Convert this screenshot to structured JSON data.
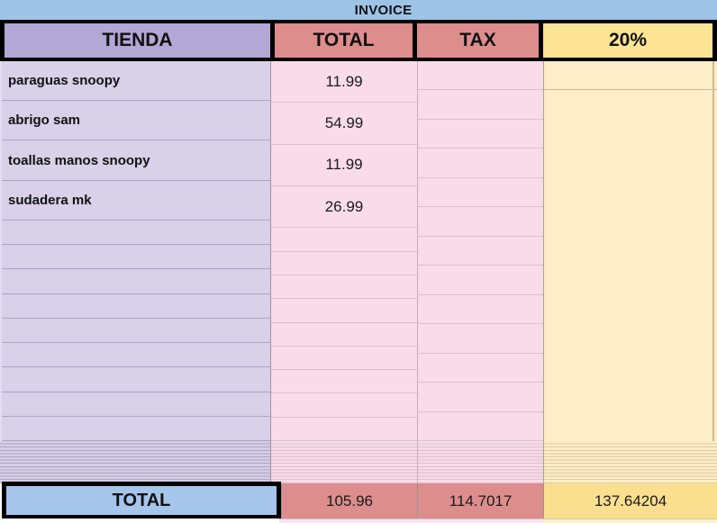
{
  "sheet": {
    "title": "INVOICE",
    "headers": {
      "tienda": "TIENDA",
      "total": "TOTAL",
      "tax": "TAX",
      "pct": "20%"
    },
    "rows": [
      {
        "name": "paraguas snoopy",
        "total": "11.99",
        "tax": ""
      },
      {
        "name": "abrigo sam",
        "total": "54.99",
        "tax": ""
      },
      {
        "name": "toallas manos snoopy",
        "total": "11.99",
        "tax": ""
      },
      {
        "name": "sudadera mk",
        "total": "26.99",
        "tax": ""
      },
      {
        "name": "",
        "total": "",
        "tax": ""
      },
      {
        "name": "",
        "total": "",
        "tax": ""
      },
      {
        "name": "",
        "total": "",
        "tax": ""
      },
      {
        "name": "",
        "total": "",
        "tax": ""
      },
      {
        "name": "",
        "total": "",
        "tax": ""
      },
      {
        "name": "",
        "total": "",
        "tax": ""
      },
      {
        "name": "",
        "total": "",
        "tax": ""
      },
      {
        "name": "",
        "total": "",
        "tax": ""
      },
      {
        "name": "",
        "total": "",
        "tax": ""
      }
    ],
    "pct_first_cell": "",
    "pct_merged_cell": "",
    "totals_row": {
      "label": "TOTAL",
      "total": "105.96",
      "tax": "114.7017",
      "pct": "137.64204"
    },
    "colors": {
      "band_blue": "#9dc4e7",
      "header_purple": "#b3a7d6",
      "header_salmon": "#de8d8d",
      "header_yellow": "#fde494",
      "cell_lavender": "#d8d1e8",
      "cell_pink": "#fadce9",
      "cell_yellow": "#fdeec9",
      "total_blue": "#a6c5ea",
      "total_salmon": "#de8d8d",
      "total_yellow": "#fadf8f"
    }
  }
}
